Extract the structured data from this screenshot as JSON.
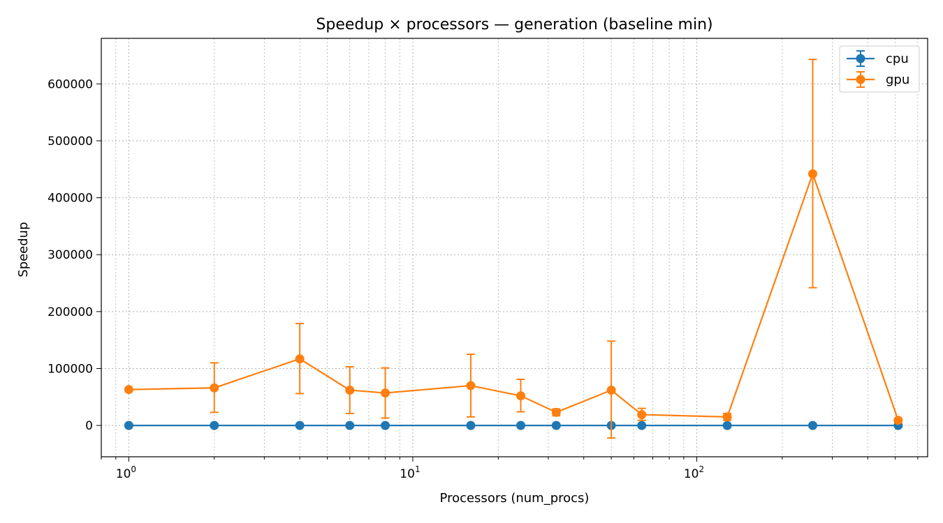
{
  "chart_data": {
    "type": "line",
    "title": "Speedup × processors — generation (baseline min)",
    "xlabel": "Processors (num_procs)",
    "ylabel": "Speedup",
    "xscale": "log",
    "xlim": [
      0.8,
      650
    ],
    "ylim": [
      -55000,
      680000
    ],
    "x_ticks": [
      {
        "value": 1,
        "base": "10",
        "exp": "0"
      },
      {
        "value": 10,
        "base": "10",
        "exp": "1"
      },
      {
        "value": 100,
        "base": "10",
        "exp": "2"
      }
    ],
    "y_ticks": [
      0,
      100000,
      200000,
      300000,
      400000,
      500000,
      600000
    ],
    "grid": true,
    "legend_position": "top-right",
    "series": [
      {
        "name": "cpu",
        "color": "#1f77b4",
        "points": [
          {
            "x": 1,
            "y": 0
          },
          {
            "x": 2,
            "y": 0
          },
          {
            "x": 4,
            "y": 0
          },
          {
            "x": 6,
            "y": 0
          },
          {
            "x": 8,
            "y": 0
          },
          {
            "x": 16,
            "y": 0
          },
          {
            "x": 24,
            "y": 0
          },
          {
            "x": 32,
            "y": 0
          },
          {
            "x": 50,
            "y": 0
          },
          {
            "x": 64,
            "y": 0
          },
          {
            "x": 128,
            "y": 0
          },
          {
            "x": 256,
            "y": 0
          },
          {
            "x": 512,
            "y": 0
          }
        ]
      },
      {
        "name": "gpu",
        "color": "#ff7f0e",
        "points": [
          {
            "x": 1,
            "y": 63000,
            "lo": 63000,
            "hi": 63000
          },
          {
            "x": 2,
            "y": 66000,
            "lo": 23000,
            "hi": 110000
          },
          {
            "x": 4,
            "y": 117000,
            "lo": 56000,
            "hi": 179000
          },
          {
            "x": 6,
            "y": 62000,
            "lo": 21000,
            "hi": 103000
          },
          {
            "x": 8,
            "y": 57000,
            "lo": 13000,
            "hi": 101000
          },
          {
            "x": 16,
            "y": 70000,
            "lo": 15000,
            "hi": 125000
          },
          {
            "x": 24,
            "y": 52000,
            "lo": 24000,
            "hi": 81000
          },
          {
            "x": 32,
            "y": 23000,
            "lo": 17000,
            "hi": 29000
          },
          {
            "x": 50,
            "y": 62000,
            "lo": -22000,
            "hi": 148000
          },
          {
            "x": 64,
            "y": 19000,
            "lo": 9000,
            "hi": 30000
          },
          {
            "x": 128,
            "y": 15000,
            "lo": 9000,
            "hi": 21000
          },
          {
            "x": 256,
            "y": 442000,
            "lo": 242000,
            "hi": 643000
          },
          {
            "x": 512,
            "y": 9000,
            "lo": 6000,
            "hi": 12000
          }
        ]
      }
    ]
  }
}
